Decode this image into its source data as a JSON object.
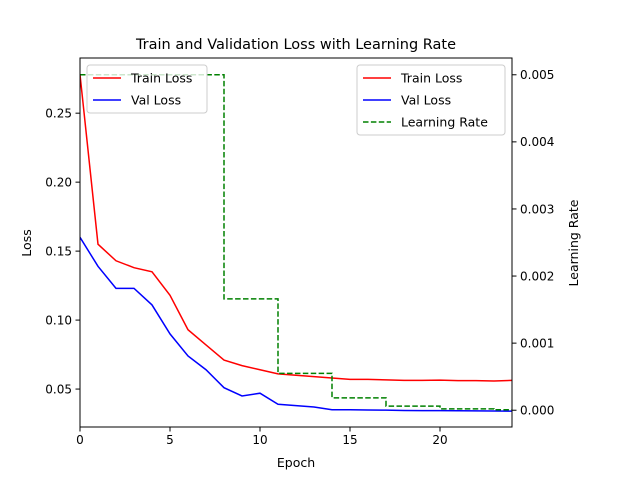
{
  "chart_data": {
    "type": "line",
    "title": "Train and Validation Loss with Learning Rate",
    "xlabel": "Epoch",
    "ylabel": "Loss",
    "y2label": "Learning Rate",
    "xlim": [
      0,
      24
    ],
    "ylim": [
      0.0225,
      0.29
    ],
    "y2lim": [
      -0.00025,
      0.00525
    ],
    "xticks": [
      0,
      5,
      10,
      15,
      20
    ],
    "yticks": [
      0.05,
      0.1,
      0.15,
      0.2,
      0.25
    ],
    "ytick_labels": [
      "0.05",
      "0.10",
      "0.15",
      "0.20",
      "0.25"
    ],
    "y2ticks": [
      0,
      0.001,
      0.002,
      0.003,
      0.004,
      0.005
    ],
    "y2tick_labels": [
      "0.000",
      "0.001",
      "0.002",
      "0.003",
      "0.004",
      "0.005"
    ],
    "grid": false,
    "x": [
      0,
      1,
      2,
      3,
      4,
      5,
      6,
      7,
      8,
      9,
      10,
      11,
      12,
      13,
      14,
      15,
      16,
      17,
      18,
      19,
      20,
      21,
      22,
      23,
      24
    ],
    "series": [
      {
        "name": "Train Loss",
        "axis": "left",
        "color": "#ff0000",
        "dash": "solid",
        "values": [
          0.278,
          0.155,
          0.143,
          0.138,
          0.135,
          0.118,
          0.093,
          0.082,
          0.071,
          0.067,
          0.064,
          0.061,
          0.06,
          0.059,
          0.058,
          0.057,
          0.057,
          0.0567,
          0.0563,
          0.0563,
          0.0565,
          0.0561,
          0.0561,
          0.0558,
          0.0563
        ]
      },
      {
        "name": "Val Loss",
        "axis": "left",
        "color": "#0000ff",
        "dash": "solid",
        "values": [
          0.16,
          0.139,
          0.123,
          0.123,
          0.111,
          0.09,
          0.074,
          0.064,
          0.051,
          0.045,
          0.047,
          0.039,
          0.038,
          0.037,
          0.035,
          0.035,
          0.0348,
          0.0347,
          0.0345,
          0.0344,
          0.0344,
          0.0343,
          0.0342,
          0.0341,
          0.034
        ]
      },
      {
        "name": "Learning Rate",
        "axis": "right",
        "color": "#008000",
        "dash": "dashed",
        "step": true,
        "values": [
          0.005,
          0.005,
          0.005,
          0.005,
          0.005,
          0.005,
          0.005,
          0.005,
          0.00166,
          0.00166,
          0.00166,
          0.00055,
          0.00055,
          0.00055,
          0.000185,
          0.000185,
          0.000185,
          6.2e-05,
          6.2e-05,
          6.2e-05,
          2.06e-05,
          2.06e-05,
          2.06e-05,
          6.9e-06,
          6.9e-06
        ]
      }
    ],
    "legends": [
      {
        "placement": "upper-left",
        "entries": [
          "Train Loss",
          "Val Loss"
        ]
      },
      {
        "placement": "upper-right",
        "entries": [
          "Train Loss",
          "Val Loss",
          "Learning Rate"
        ]
      }
    ]
  }
}
